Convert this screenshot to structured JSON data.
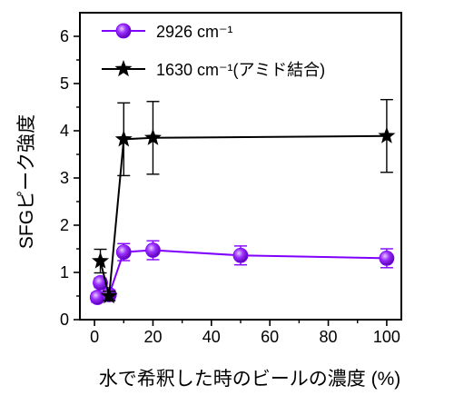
{
  "chart_data": {
    "type": "scatter",
    "xlabel": "水で希釈した時のビールの濃度 (%)",
    "ylabel": "SFGピーク強度",
    "xlim": [
      -5,
      105
    ],
    "ylim": [
      0,
      6.5
    ],
    "x_ticks": [
      0,
      20,
      40,
      60,
      80,
      100
    ],
    "y_ticks": [
      0,
      1,
      2,
      3,
      4,
      5,
      6
    ],
    "x_tick_labels": [
      "0",
      "20",
      "40",
      "60",
      "80",
      "100"
    ],
    "y_tick_labels": [
      "0",
      "1",
      "2",
      "3",
      "4",
      "5",
      "6"
    ],
    "legend_position": "top-left",
    "series": [
      {
        "name": "2926 cm⁻¹",
        "color": "#7f00ff",
        "marker": "sphere",
        "line": true,
        "x": [
          1,
          2,
          5,
          10,
          20,
          50,
          100
        ],
        "y": [
          0.47,
          0.78,
          0.53,
          1.43,
          1.47,
          1.36,
          1.3
        ],
        "error": [
          0.1,
          0.1,
          0.1,
          0.18,
          0.2,
          0.2,
          0.2
        ]
      },
      {
        "name": "1630 cm⁻¹(アミド結合)",
        "color": "#000000",
        "marker": "star",
        "line": true,
        "x": [
          2,
          5,
          10,
          20,
          100
        ],
        "y": [
          1.24,
          0.5,
          3.82,
          3.85,
          3.89
        ],
        "error": [
          0.25,
          0.1,
          0.77,
          0.77,
          0.77
        ]
      }
    ]
  }
}
